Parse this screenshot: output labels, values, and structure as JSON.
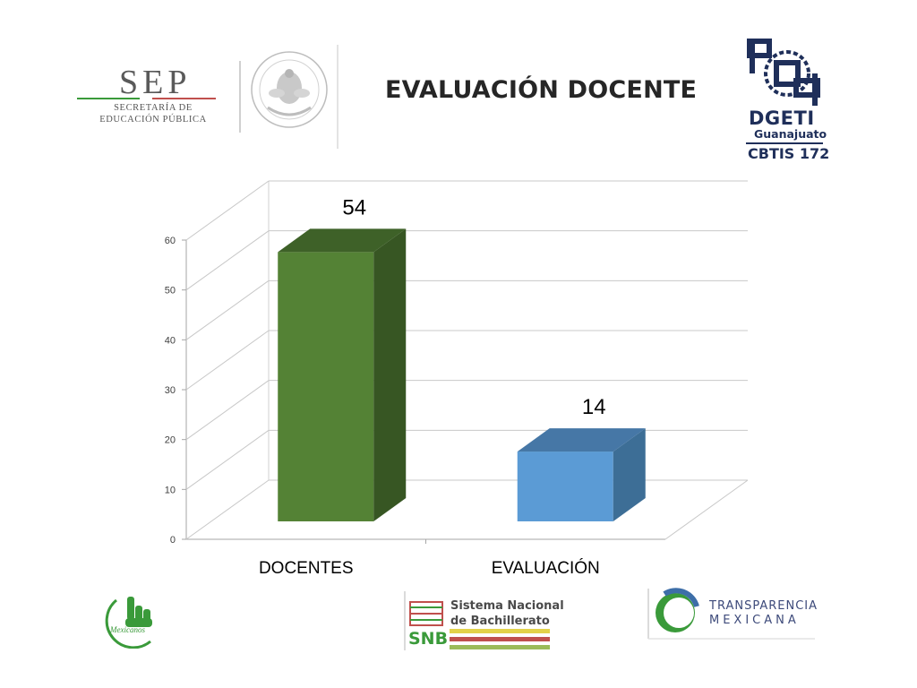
{
  "slide": {
    "title": "EVALUACIÓN DOCENTE"
  },
  "logos": {
    "sep": {
      "word": "SEP",
      "line1": "SECRETARÍA DE",
      "line2": "EDUCACIÓN PÚBLICA",
      "icon": "sep-logo"
    },
    "seal": {
      "icon": "mexican-coat-of-arms-seal",
      "text": "ESTADOS UNIDOS MEXICANOS"
    },
    "dgeti": {
      "word": "DGETI",
      "sub": "Guanajuato",
      "cbtis": "CBTIS 172",
      "icon": "dgeti-logo"
    },
    "mexicanos": {
      "text": "Mexicanos",
      "icon": "mexicanos-hand-logo"
    },
    "snb": {
      "line1": "Sistema Nacional",
      "line2": "de Bachillerato",
      "abbr": "SNB",
      "icon": "snb-logo"
    },
    "transparencia": {
      "line1": "TRANSPARENCIA",
      "line2": "MEXICANA",
      "icon": "transparencia-logo"
    }
  },
  "chart_data": {
    "type": "bar",
    "title": "",
    "categories": [
      "DOCENTES",
      "EVALUACIÓN"
    ],
    "values": [
      54,
      14
    ],
    "data_labels": [
      "54",
      "14"
    ],
    "ylim": [
      0,
      60
    ],
    "yticks": [
      0,
      10,
      20,
      30,
      40,
      50,
      60
    ],
    "ytick_labels": [
      "0",
      "10",
      "20",
      "30",
      "40",
      "50",
      "60"
    ],
    "grid": true,
    "style": "3d",
    "legend": "none",
    "colors": {
      "front": [
        "#548235",
        "#5b9bd5"
      ],
      "side": [
        "#375623",
        "#3d6e96"
      ],
      "top": [
        "#3e6128",
        "#4677a6"
      ],
      "grid": "#a6a6a6"
    }
  }
}
